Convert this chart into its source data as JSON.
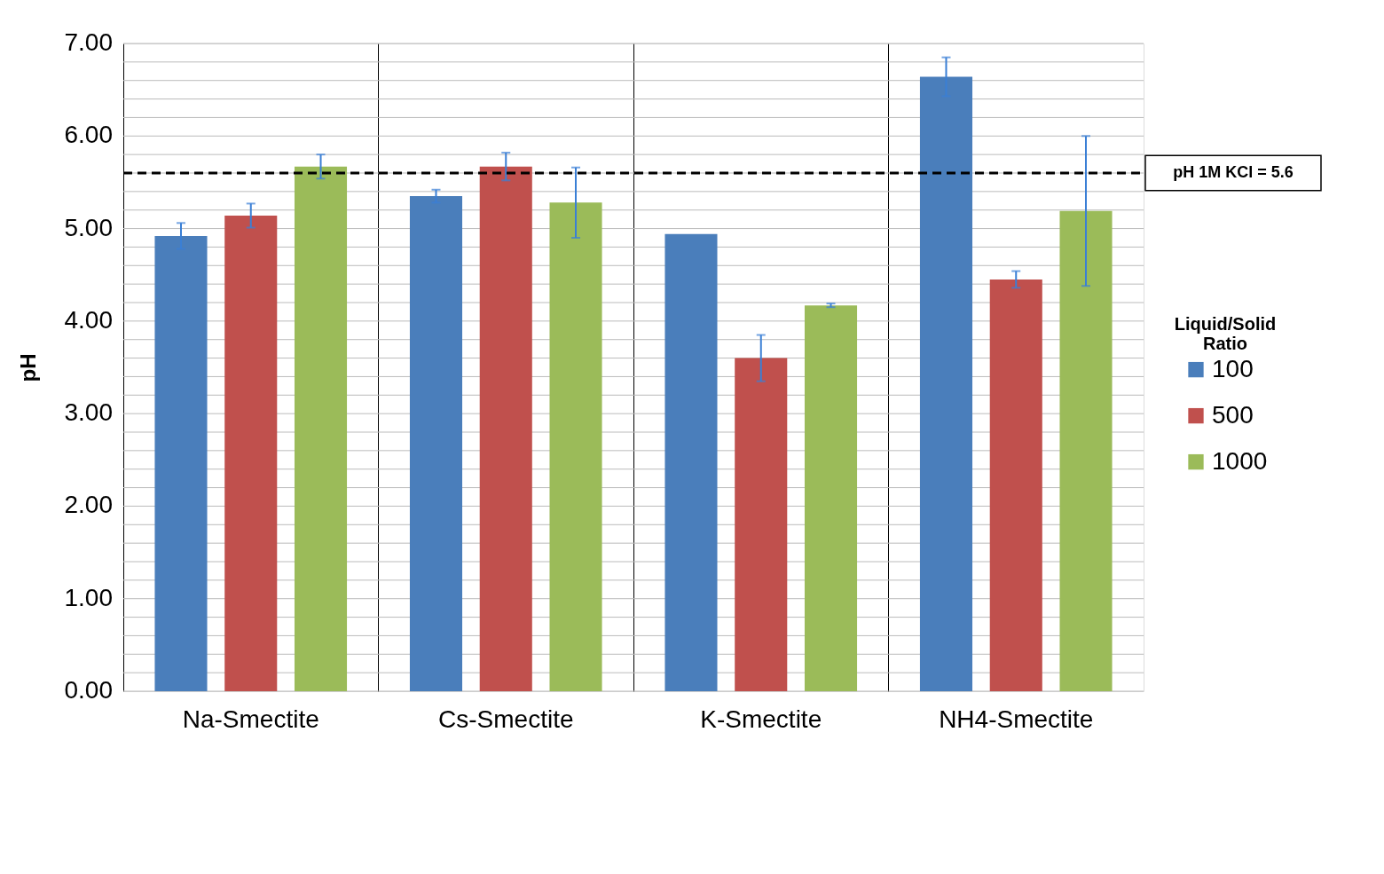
{
  "chart_data": {
    "type": "bar",
    "ylabel": "pH",
    "legend_title": "Liquid/Solid Ratio",
    "categories": [
      "Na-Smectite",
      "Cs-Smectite",
      "K-Smectite",
      "NH4-Smectite"
    ],
    "series": [
      {
        "name": "100",
        "color": "#4a7ebb",
        "values": [
          4.92,
          5.35,
          4.94,
          6.64
        ],
        "errors": [
          0.14,
          0.07,
          null,
          0.21
        ]
      },
      {
        "name": "500",
        "color": "#c0504d",
        "values": [
          5.14,
          5.67,
          3.6,
          4.45
        ],
        "errors": [
          0.13,
          0.15,
          0.25,
          0.09
        ]
      },
      {
        "name": "1000",
        "color": "#9bbb59",
        "values": [
          5.67,
          5.28,
          4.17,
          5.19
        ],
        "errors": [
          0.13,
          0.38,
          0.02,
          0.81
        ]
      }
    ],
    "ylim": [
      0,
      7
    ],
    "yticks": [
      {
        "value": 0,
        "label": "0.00"
      },
      {
        "value": 0.2,
        "label": null
      },
      {
        "value": 0.4,
        "label": null
      },
      {
        "value": 0.6,
        "label": null
      },
      {
        "value": 0.8,
        "label": null
      },
      {
        "value": 1,
        "label": "1.00"
      },
      {
        "value": 1.2,
        "label": null
      },
      {
        "value": 1.4,
        "label": null
      },
      {
        "value": 1.6,
        "label": null
      },
      {
        "value": 1.8,
        "label": null
      },
      {
        "value": 2,
        "label": "2.00"
      },
      {
        "value": 2.2,
        "label": null
      },
      {
        "value": 2.4,
        "label": null
      },
      {
        "value": 2.6,
        "label": null
      },
      {
        "value": 2.8,
        "label": null
      },
      {
        "value": 3,
        "label": "3.00"
      },
      {
        "value": 3.2,
        "label": null
      },
      {
        "value": 3.4,
        "label": null
      },
      {
        "value": 3.6,
        "label": null
      },
      {
        "value": 3.8,
        "label": null
      },
      {
        "value": 4,
        "label": "4.00"
      },
      {
        "value": 4.2,
        "label": null
      },
      {
        "value": 4.4,
        "label": null
      },
      {
        "value": 4.6,
        "label": null
      },
      {
        "value": 4.8,
        "label": null
      },
      {
        "value": 5,
        "label": "5.00"
      },
      {
        "value": 5.2,
        "label": null
      },
      {
        "value": 5.4,
        "label": null
      },
      {
        "value": 5.6,
        "label": null
      },
      {
        "value": 5.8,
        "label": null
      },
      {
        "value": 6,
        "label": "6.00"
      },
      {
        "value": 6.2,
        "label": null
      },
      {
        "value": 6.4,
        "label": null
      },
      {
        "value": 6.6,
        "label": null
      },
      {
        "value": 6.8,
        "label": null
      },
      {
        "value": 7,
        "label": "7.00"
      }
    ],
    "ref_lines": [
      {
        "axis": "y",
        "value": 5.6,
        "label": "pH 1M KCl = 5.6",
        "color": "#000000",
        "line_style": "dashed"
      }
    ],
    "grid": true,
    "legend": "right"
  }
}
